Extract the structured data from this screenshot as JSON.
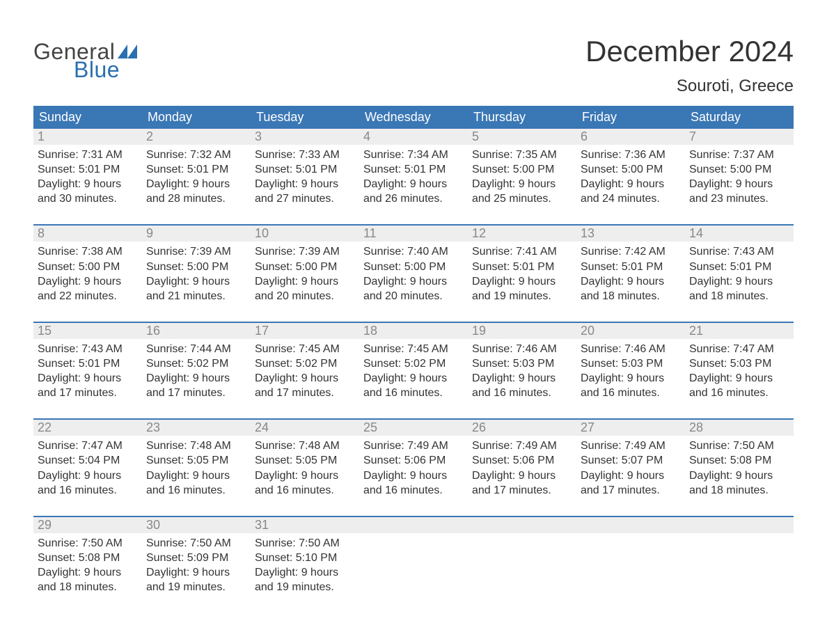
{
  "logo": {
    "general": "General",
    "blue": "Blue",
    "shape_color": "#2a6fb0"
  },
  "title": "December 2024",
  "location": "Souroti, Greece",
  "colors": {
    "header_bg": "#3a77b5",
    "header_text": "#ffffff",
    "daynum_bg": "#eeeeee",
    "daynum_text": "#888888",
    "body_text": "#333333",
    "separator": "#3a77b5",
    "background": "#ffffff",
    "logo_gray": "#444444",
    "logo_blue": "#2a6fb0"
  },
  "fonts": {
    "title_size": 42,
    "location_size": 24,
    "header_size": 18,
    "daynum_size": 18,
    "cell_size": 16,
    "logo_size": 32
  },
  "day_names": [
    "Sunday",
    "Monday",
    "Tuesday",
    "Wednesday",
    "Thursday",
    "Friday",
    "Saturday"
  ],
  "weeks": [
    [
      {
        "n": "1",
        "sr": "Sunrise: 7:31 AM",
        "ss": "Sunset: 5:01 PM",
        "d1": "Daylight: 9 hours",
        "d2": "and 30 minutes."
      },
      {
        "n": "2",
        "sr": "Sunrise: 7:32 AM",
        "ss": "Sunset: 5:01 PM",
        "d1": "Daylight: 9 hours",
        "d2": "and 28 minutes."
      },
      {
        "n": "3",
        "sr": "Sunrise: 7:33 AM",
        "ss": "Sunset: 5:01 PM",
        "d1": "Daylight: 9 hours",
        "d2": "and 27 minutes."
      },
      {
        "n": "4",
        "sr": "Sunrise: 7:34 AM",
        "ss": "Sunset: 5:01 PM",
        "d1": "Daylight: 9 hours",
        "d2": "and 26 minutes."
      },
      {
        "n": "5",
        "sr": "Sunrise: 7:35 AM",
        "ss": "Sunset: 5:00 PM",
        "d1": "Daylight: 9 hours",
        "d2": "and 25 minutes."
      },
      {
        "n": "6",
        "sr": "Sunrise: 7:36 AM",
        "ss": "Sunset: 5:00 PM",
        "d1": "Daylight: 9 hours",
        "d2": "and 24 minutes."
      },
      {
        "n": "7",
        "sr": "Sunrise: 7:37 AM",
        "ss": "Sunset: 5:00 PM",
        "d1": "Daylight: 9 hours",
        "d2": "and 23 minutes."
      }
    ],
    [
      {
        "n": "8",
        "sr": "Sunrise: 7:38 AM",
        "ss": "Sunset: 5:00 PM",
        "d1": "Daylight: 9 hours",
        "d2": "and 22 minutes."
      },
      {
        "n": "9",
        "sr": "Sunrise: 7:39 AM",
        "ss": "Sunset: 5:00 PM",
        "d1": "Daylight: 9 hours",
        "d2": "and 21 minutes."
      },
      {
        "n": "10",
        "sr": "Sunrise: 7:39 AM",
        "ss": "Sunset: 5:00 PM",
        "d1": "Daylight: 9 hours",
        "d2": "and 20 minutes."
      },
      {
        "n": "11",
        "sr": "Sunrise: 7:40 AM",
        "ss": "Sunset: 5:00 PM",
        "d1": "Daylight: 9 hours",
        "d2": "and 20 minutes."
      },
      {
        "n": "12",
        "sr": "Sunrise: 7:41 AM",
        "ss": "Sunset: 5:01 PM",
        "d1": "Daylight: 9 hours",
        "d2": "and 19 minutes."
      },
      {
        "n": "13",
        "sr": "Sunrise: 7:42 AM",
        "ss": "Sunset: 5:01 PM",
        "d1": "Daylight: 9 hours",
        "d2": "and 18 minutes."
      },
      {
        "n": "14",
        "sr": "Sunrise: 7:43 AM",
        "ss": "Sunset: 5:01 PM",
        "d1": "Daylight: 9 hours",
        "d2": "and 18 minutes."
      }
    ],
    [
      {
        "n": "15",
        "sr": "Sunrise: 7:43 AM",
        "ss": "Sunset: 5:01 PM",
        "d1": "Daylight: 9 hours",
        "d2": "and 17 minutes."
      },
      {
        "n": "16",
        "sr": "Sunrise: 7:44 AM",
        "ss": "Sunset: 5:02 PM",
        "d1": "Daylight: 9 hours",
        "d2": "and 17 minutes."
      },
      {
        "n": "17",
        "sr": "Sunrise: 7:45 AM",
        "ss": "Sunset: 5:02 PM",
        "d1": "Daylight: 9 hours",
        "d2": "and 17 minutes."
      },
      {
        "n": "18",
        "sr": "Sunrise: 7:45 AM",
        "ss": "Sunset: 5:02 PM",
        "d1": "Daylight: 9 hours",
        "d2": "and 16 minutes."
      },
      {
        "n": "19",
        "sr": "Sunrise: 7:46 AM",
        "ss": "Sunset: 5:03 PM",
        "d1": "Daylight: 9 hours",
        "d2": "and 16 minutes."
      },
      {
        "n": "20",
        "sr": "Sunrise: 7:46 AM",
        "ss": "Sunset: 5:03 PM",
        "d1": "Daylight: 9 hours",
        "d2": "and 16 minutes."
      },
      {
        "n": "21",
        "sr": "Sunrise: 7:47 AM",
        "ss": "Sunset: 5:03 PM",
        "d1": "Daylight: 9 hours",
        "d2": "and 16 minutes."
      }
    ],
    [
      {
        "n": "22",
        "sr": "Sunrise: 7:47 AM",
        "ss": "Sunset: 5:04 PM",
        "d1": "Daylight: 9 hours",
        "d2": "and 16 minutes."
      },
      {
        "n": "23",
        "sr": "Sunrise: 7:48 AM",
        "ss": "Sunset: 5:05 PM",
        "d1": "Daylight: 9 hours",
        "d2": "and 16 minutes."
      },
      {
        "n": "24",
        "sr": "Sunrise: 7:48 AM",
        "ss": "Sunset: 5:05 PM",
        "d1": "Daylight: 9 hours",
        "d2": "and 16 minutes."
      },
      {
        "n": "25",
        "sr": "Sunrise: 7:49 AM",
        "ss": "Sunset: 5:06 PM",
        "d1": "Daylight: 9 hours",
        "d2": "and 16 minutes."
      },
      {
        "n": "26",
        "sr": "Sunrise: 7:49 AM",
        "ss": "Sunset: 5:06 PM",
        "d1": "Daylight: 9 hours",
        "d2": "and 17 minutes."
      },
      {
        "n": "27",
        "sr": "Sunrise: 7:49 AM",
        "ss": "Sunset: 5:07 PM",
        "d1": "Daylight: 9 hours",
        "d2": "and 17 minutes."
      },
      {
        "n": "28",
        "sr": "Sunrise: 7:50 AM",
        "ss": "Sunset: 5:08 PM",
        "d1": "Daylight: 9 hours",
        "d2": "and 18 minutes."
      }
    ],
    [
      {
        "n": "29",
        "sr": "Sunrise: 7:50 AM",
        "ss": "Sunset: 5:08 PM",
        "d1": "Daylight: 9 hours",
        "d2": "and 18 minutes."
      },
      {
        "n": "30",
        "sr": "Sunrise: 7:50 AM",
        "ss": "Sunset: 5:09 PM",
        "d1": "Daylight: 9 hours",
        "d2": "and 19 minutes."
      },
      {
        "n": "31",
        "sr": "Sunrise: 7:50 AM",
        "ss": "Sunset: 5:10 PM",
        "d1": "Daylight: 9 hours",
        "d2": "and 19 minutes."
      },
      null,
      null,
      null,
      null
    ]
  ]
}
